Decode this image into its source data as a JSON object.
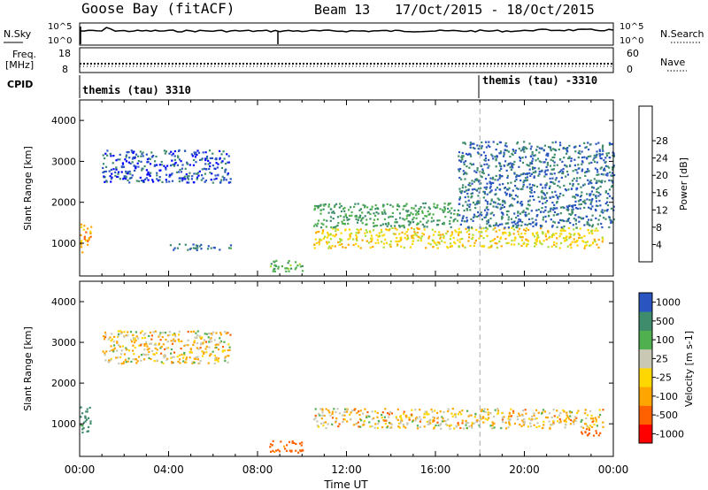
{
  "header": {
    "station": "Goose Bay (fitACF)",
    "beam": "Beam 13",
    "date_range": "17/Oct/2015 - 18/Oct/2015"
  },
  "ancillary": {
    "nsky_label": "N.Sky",
    "nsearch_label": "N.Search",
    "noise_ticks": [
      "10^5",
      "10^0"
    ],
    "freq_label": "Freq.",
    "freq_unit": "[MHz]",
    "freq_ticks": [
      "18",
      "8"
    ],
    "nave_label": "Nave",
    "nave_ticks": [
      "60",
      "0"
    ],
    "cpid_label": "CPID",
    "cpid_1": "themis (tau) 3310",
    "cpid_2": "themis (tau) -3310"
  },
  "axes": {
    "ylabel": "Slant Range [km]",
    "xlabel": "Time UT",
    "y_ticks": [
      "1000",
      "2000",
      "3000",
      "4000"
    ],
    "x_ticks": [
      "00:00",
      "04:00",
      "08:00",
      "12:00",
      "16:00",
      "20:00",
      "00:00"
    ]
  },
  "colors": {
    "power": [
      "#0000ff",
      "#2a55c0",
      "#3e8c6c",
      "#50b050",
      "#aadc32",
      "#ffd700",
      "#ffa500",
      "#ff5a00",
      "#ff0000"
    ],
    "velocity": [
      "#ff0000",
      "#ff6000",
      "#ffa500",
      "#ffd700",
      "#c8c8b4",
      "#50b050",
      "#3e8c6c",
      "#2a55c0"
    ]
  },
  "power_scale": {
    "label": "Power [dB]",
    "ticks": [
      "4",
      "8",
      "12",
      "16",
      "20",
      "24",
      "28"
    ]
  },
  "velocity_scale": {
    "label": "Velocity [m s-1]",
    "ticks": [
      "-1000",
      "-500",
      "-100",
      "-25",
      "25",
      "100",
      "500",
      "1000"
    ]
  },
  "chart_data": {
    "type": "heatmap",
    "x_unit": "hours UT",
    "xlim": [
      0,
      24
    ],
    "ylim": [
      200,
      4500
    ],
    "cpid_change_hour": 18,
    "power_regions": [
      {
        "t": [
          0.0,
          0.5
        ],
        "r": [
          800,
          1500
        ],
        "dB": 26
      },
      {
        "t": [
          1.0,
          6.8
        ],
        "r": [
          2500,
          3300
        ],
        "dB": 6
      },
      {
        "t": [
          4.0,
          6.8
        ],
        "r": [
          850,
          1000
        ],
        "dB": 9
      },
      {
        "t": [
          8.5,
          10.0
        ],
        "r": [
          300,
          600
        ],
        "dB": 14
      },
      {
        "t": [
          10.5,
          23.5
        ],
        "r": [
          900,
          1400
        ],
        "dB": 22
      },
      {
        "t": [
          10.5,
          17.0
        ],
        "r": [
          1400,
          2000
        ],
        "dB": 12
      },
      {
        "t": [
          17.0,
          24.0
        ],
        "r": [
          1400,
          3500
        ],
        "dB": 8
      }
    ],
    "velocity_regions": [
      {
        "t": [
          0.0,
          0.5
        ],
        "r": [
          800,
          1500
        ],
        "v": 600
      },
      {
        "t": [
          1.0,
          6.8
        ],
        "r": [
          2500,
          3300
        ],
        "v": 0
      },
      {
        "t": [
          8.5,
          10.0
        ],
        "r": [
          300,
          600
        ],
        "v": -200
      },
      {
        "t": [
          10.5,
          23.5
        ],
        "r": [
          900,
          1400
        ],
        "v": 0
      },
      {
        "t": [
          22.5,
          23.5
        ],
        "r": [
          700,
          900
        ],
        "v": -300
      }
    ]
  }
}
